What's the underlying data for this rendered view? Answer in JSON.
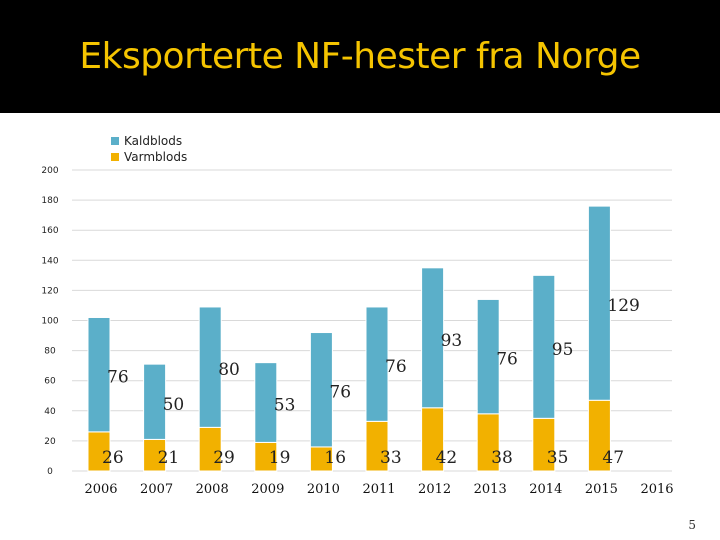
{
  "title": "Eksporterte NF-hester fra Norge",
  "page_number": "5",
  "colors": {
    "kaldblods": "#5bafc9",
    "varmblods": "#f2b100",
    "title_text": "#f5c400",
    "title_bg": "#000000"
  },
  "chart_data": {
    "type": "bar",
    "stacked": true,
    "title": "",
    "xlabel": "",
    "ylabel": "",
    "ylim": [
      0,
      200
    ],
    "yticks": [
      0,
      20,
      40,
      60,
      80,
      100,
      120,
      140,
      160,
      180,
      200
    ],
    "categories": [
      "2006",
      "2007",
      "2008",
      "2009",
      "2010",
      "2011",
      "2012",
      "2013",
      "2014",
      "2015",
      "2016"
    ],
    "series": [
      {
        "name": "Varmblods",
        "color": "#f2b100",
        "values": [
          26,
          21,
          29,
          19,
          16,
          33,
          42,
          38,
          35,
          47,
          null
        ]
      },
      {
        "name": "Kaldblods",
        "color": "#5bafc9",
        "values": [
          76,
          50,
          80,
          53,
          76,
          76,
          93,
          76,
          95,
          129,
          null
        ]
      }
    ],
    "legend": {
      "position": "top-left",
      "entries": [
        "Kaldblods",
        "Varmblods"
      ]
    },
    "grid": true
  }
}
